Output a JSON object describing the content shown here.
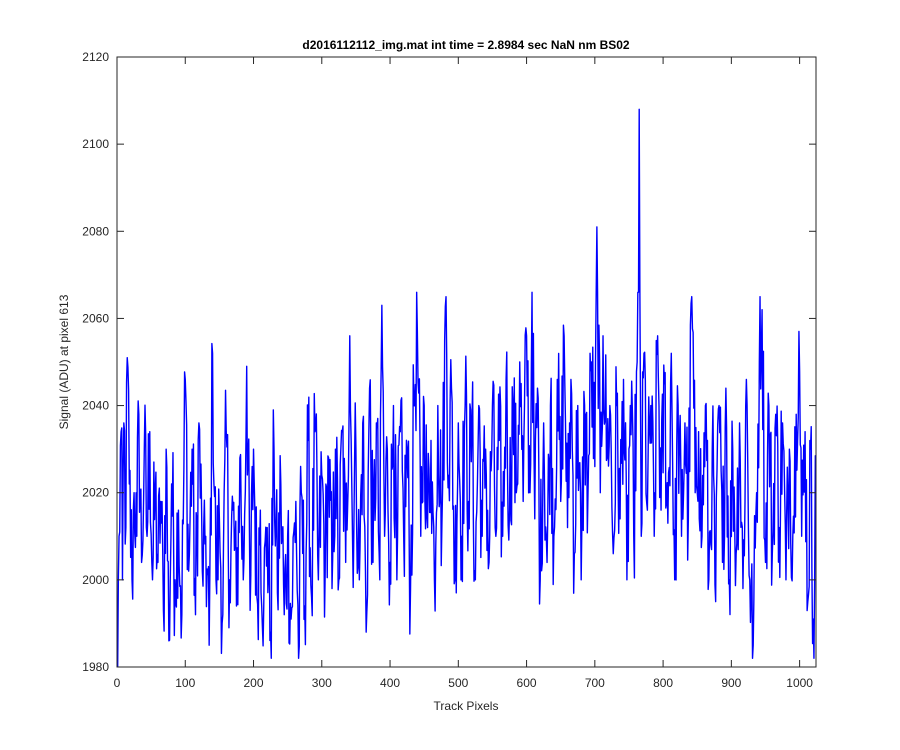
{
  "figure": {
    "background": "#ffffff",
    "axes_color": "#262626",
    "line_color": "#0000ff"
  },
  "chart_data": {
    "type": "line",
    "title": "d2016112112_img.mat int time = 2.8984 sec  NaN nm BS02",
    "xlabel": "Track Pixels",
    "ylabel": "Signal (ADU) at pixel 613",
    "xlim": [
      0,
      1024
    ],
    "ylim": [
      1980,
      2120
    ],
    "xticks": [
      0,
      100,
      200,
      300,
      400,
      500,
      600,
      700,
      800,
      900,
      1000
    ],
    "yticks": [
      1980,
      2000,
      2020,
      2040,
      2060,
      2080,
      2100,
      2120
    ],
    "grid": false,
    "box": true,
    "series": [
      {
        "color": "#0000ff",
        "x_start": 1,
        "x_step": 1,
        "count": 1024,
        "anchors": [
          [
            1,
            1980
          ],
          [
            3,
            2010
          ],
          [
            6,
            2034
          ],
          [
            8,
            2000
          ],
          [
            10,
            2036
          ],
          [
            13,
            2012
          ],
          [
            15,
            2051
          ],
          [
            18,
            2022
          ],
          [
            22,
            2000
          ],
          [
            25,
            2020
          ],
          [
            29,
            2010
          ],
          [
            32,
            2038
          ],
          [
            36,
            2004
          ],
          [
            40,
            2030
          ],
          [
            44,
            2010
          ],
          [
            48,
            2034
          ],
          [
            52,
            2000
          ],
          [
            56,
            2020
          ],
          [
            60,
            2004
          ],
          [
            64,
            2018
          ],
          [
            68,
            1993
          ],
          [
            72,
            2030
          ],
          [
            76,
            1986
          ],
          [
            80,
            2022
          ],
          [
            85,
            2000
          ],
          [
            90,
            2016
          ],
          [
            95,
            1992
          ],
          [
            100,
            2046
          ],
          [
            105,
            2002
          ],
          [
            110,
            2030
          ],
          [
            115,
            1992
          ],
          [
            120,
            2036
          ],
          [
            125,
            2002
          ],
          [
            130,
            2010
          ],
          [
            135,
            1985
          ],
          [
            140,
            2052
          ],
          [
            145,
            2000
          ],
          [
            150,
            2014
          ],
          [
            155,
            1992
          ],
          [
            160,
            2034
          ],
          [
            165,
            2000
          ],
          [
            170,
            2016
          ],
          [
            175,
            1994
          ],
          [
            180,
            2028
          ],
          [
            185,
            2000
          ],
          [
            190,
            2049
          ],
          [
            195,
            1993
          ],
          [
            200,
            2030
          ],
          [
            205,
            1996
          ],
          [
            210,
            2016
          ],
          [
            215,
            1994
          ],
          [
            220,
            2012
          ],
          [
            225,
            1988
          ],
          [
            230,
            2030
          ],
          [
            235,
            1997
          ],
          [
            240,
            2022
          ],
          [
            245,
            1992
          ],
          [
            250,
            2010
          ],
          [
            255,
            1991
          ],
          [
            262,
            2018
          ],
          [
            266,
            1982
          ],
          [
            270,
            2020
          ],
          [
            275,
            1994
          ],
          [
            280,
            2032
          ],
          [
            285,
            1996
          ],
          [
            290,
            2034
          ],
          [
            295,
            2000
          ],
          [
            300,
            2024
          ],
          [
            305,
            2002
          ],
          [
            310,
            2028
          ],
          [
            315,
            1998
          ],
          [
            320,
            2030
          ],
          [
            325,
            2000
          ],
          [
            330,
            2034
          ],
          [
            335,
            2004
          ],
          [
            341,
            2056
          ],
          [
            345,
            2010
          ],
          [
            350,
            2030
          ],
          [
            355,
            2000
          ],
          [
            360,
            2036
          ],
          [
            365,
            1988
          ],
          [
            370,
            2044
          ],
          [
            375,
            2004
          ],
          [
            380,
            2036
          ],
          [
            385,
            2000
          ],
          [
            388,
            2063
          ],
          [
            392,
            2010
          ],
          [
            396,
            2030
          ],
          [
            400,
            2004
          ],
          [
            405,
            2040
          ],
          [
            410,
            2000
          ],
          [
            415,
            2034
          ],
          [
            420,
            2010
          ],
          [
            425,
            2030
          ],
          [
            430,
            1998
          ],
          [
            435,
            2040
          ],
          [
            440,
            2057
          ],
          [
            445,
            2010
          ],
          [
            450,
            2040
          ],
          [
            455,
            2012
          ],
          [
            460,
            2032
          ],
          [
            465,
            2000
          ],
          [
            470,
            2040
          ],
          [
            476,
            2013
          ],
          [
            482,
            2065
          ],
          [
            486,
            2024
          ],
          [
            490,
            2044
          ],
          [
            495,
            2000
          ],
          [
            500,
            2036
          ],
          [
            505,
            2010
          ],
          [
            510,
            2040
          ],
          [
            515,
            2018
          ],
          [
            520,
            2036
          ],
          [
            525,
            2000
          ],
          [
            530,
            2040
          ],
          [
            535,
            2010
          ],
          [
            540,
            2030
          ],
          [
            545,
            2004
          ],
          [
            550,
            2040
          ],
          [
            555,
            2010
          ],
          [
            560,
            2032
          ],
          [
            565,
            2010
          ],
          [
            570,
            2046
          ],
          [
            575,
            2016
          ],
          [
            580,
            2040
          ],
          [
            585,
            2020
          ],
          [
            590,
            2050
          ],
          [
            595,
            2018
          ],
          [
            600,
            2056
          ],
          [
            605,
            2020
          ],
          [
            608,
            2066
          ],
          [
            612,
            2014
          ],
          [
            616,
            2044
          ],
          [
            620,
            2000
          ],
          [
            625,
            2036
          ],
          [
            630,
            2004
          ],
          [
            635,
            2040
          ],
          [
            640,
            2010
          ],
          [
            645,
            2046
          ],
          [
            650,
            2018
          ],
          [
            655,
            2056
          ],
          [
            660,
            2012
          ],
          [
            665,
            2046
          ],
          [
            670,
            2006
          ],
          [
            675,
            2040
          ],
          [
            680,
            2000
          ],
          [
            685,
            2040
          ],
          [
            690,
            2020
          ],
          [
            695,
            2050
          ],
          [
            700,
            2026
          ],
          [
            703,
            2081
          ],
          [
            708,
            2020
          ],
          [
            712,
            2056
          ],
          [
            718,
            2028
          ],
          [
            722,
            2040
          ],
          [
            727,
            2006
          ],
          [
            732,
            2040
          ],
          [
            737,
            2014
          ],
          [
            742,
            2046
          ],
          [
            747,
            2000
          ],
          [
            752,
            2040
          ],
          [
            757,
            2010
          ],
          [
            762,
            2050
          ],
          [
            765,
            2108
          ],
          [
            768,
            2010
          ],
          [
            772,
            2052
          ],
          [
            777,
            2016
          ],
          [
            782,
            2040
          ],
          [
            787,
            2010
          ],
          [
            792,
            2056
          ],
          [
            797,
            2016
          ],
          [
            802,
            2045
          ],
          [
            807,
            2013
          ],
          [
            812,
            2052
          ],
          [
            817,
            2000
          ],
          [
            822,
            2040
          ],
          [
            827,
            2010
          ],
          [
            832,
            2036
          ],
          [
            837,
            2014
          ],
          [
            842,
            2065
          ],
          [
            847,
            2020
          ],
          [
            852,
            2034
          ],
          [
            857,
            2010
          ],
          [
            862,
            2040
          ],
          [
            867,
            2000
          ],
          [
            872,
            2030
          ],
          [
            877,
            1995
          ],
          [
            882,
            2040
          ],
          [
            887,
            2004
          ],
          [
            892,
            2044
          ],
          [
            897,
            2000
          ],
          [
            902,
            2030
          ],
          [
            907,
            2006
          ],
          [
            912,
            2036
          ],
          [
            917,
            1998
          ],
          [
            922,
            2046
          ],
          [
            927,
            2000
          ],
          [
            932,
            1985
          ],
          [
            937,
            2020
          ],
          [
            941,
            2050
          ],
          [
            945,
            2062
          ],
          [
            950,
            2004
          ],
          [
            955,
            2040
          ],
          [
            960,
            2006
          ],
          [
            965,
            2038
          ],
          [
            970,
            2012
          ],
          [
            975,
            2036
          ],
          [
            980,
            2000
          ],
          [
            985,
            2030
          ],
          [
            990,
            2010
          ],
          [
            995,
            2038
          ],
          [
            999,
            2057
          ],
          [
            1003,
            2010
          ],
          [
            1008,
            2034
          ],
          [
            1012,
            1995
          ],
          [
            1016,
            2030
          ],
          [
            1020,
            1991
          ],
          [
            1024,
            2022
          ]
        ]
      }
    ]
  }
}
